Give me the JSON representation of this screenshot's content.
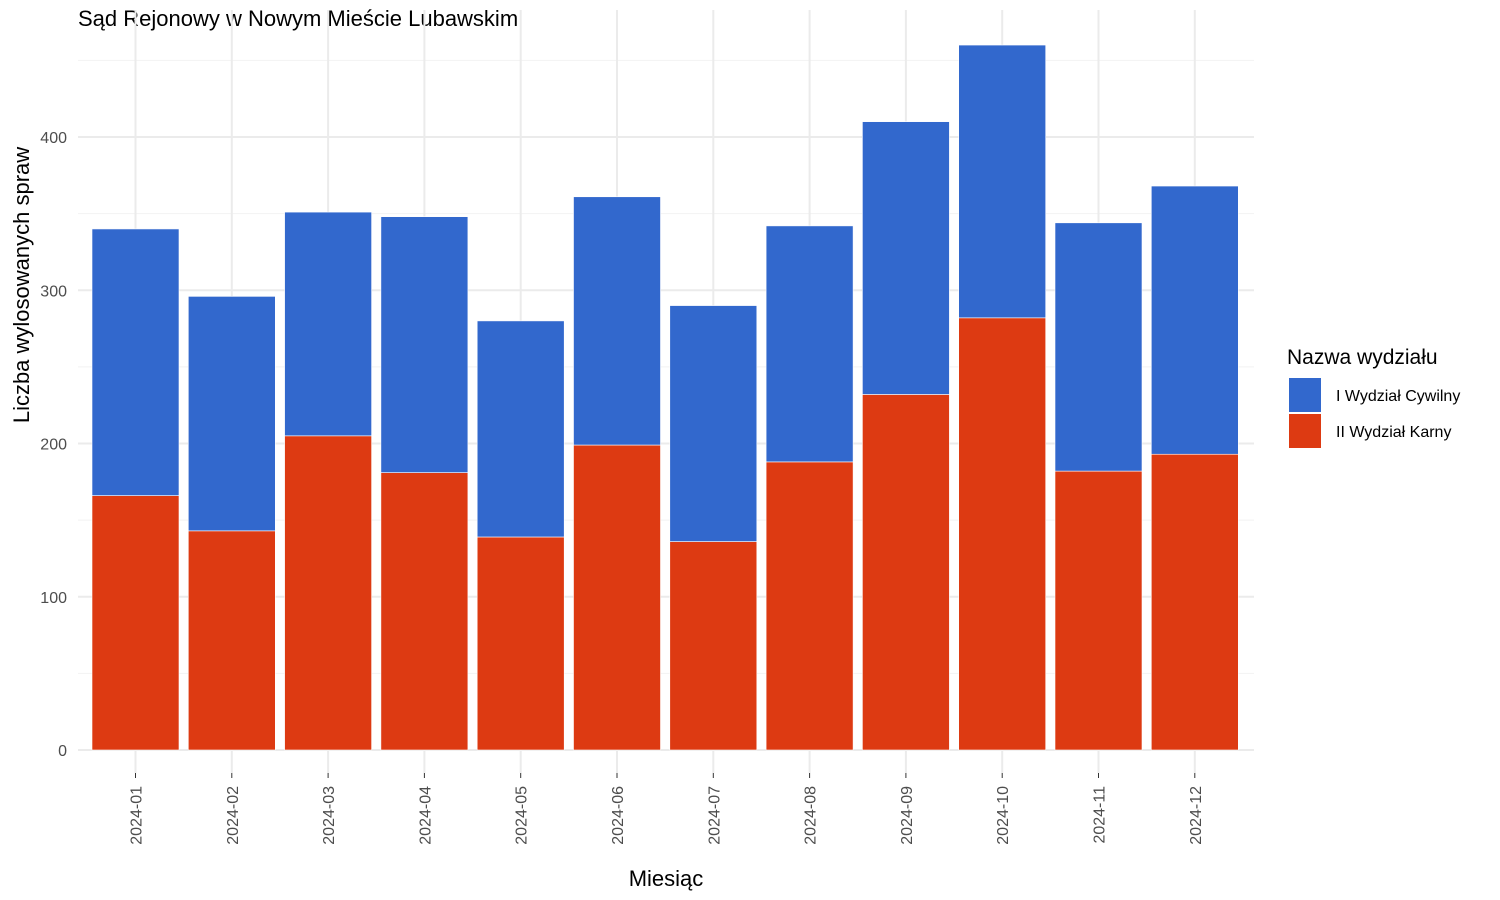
{
  "chart_data": {
    "type": "bar",
    "stacked": true,
    "title": "Sąd Rejonowy w Nowym Mieście Lubawskim",
    "xlabel": "Miesiąc",
    "ylabel": "Liczba wylosowanych spraw",
    "ylim": [
      0,
      460
    ],
    "yticks": [
      0,
      100,
      200,
      300,
      400
    ],
    "categories": [
      "2024-01",
      "2024-02",
      "2024-03",
      "2024-04",
      "2024-05",
      "2024-06",
      "2024-07",
      "2024-08",
      "2024-09",
      "2024-10",
      "2024-11",
      "2024-12"
    ],
    "series": [
      {
        "name": "II Wydział Karny",
        "color": "#dd3a12",
        "values": [
          166,
          143,
          205,
          181,
          139,
          199,
          136,
          188,
          232,
          282,
          182,
          193
        ]
      },
      {
        "name": "I Wydział Cywilny",
        "color": "#3268cd",
        "values": [
          174,
          153,
          146,
          167,
          141,
          162,
          154,
          154,
          178,
          178,
          162,
          175
        ]
      }
    ],
    "grid": true,
    "legend": {
      "title": "Nazwa wydziału",
      "placement": "right",
      "order": [
        "I Wydział Cywilny",
        "II Wydział Karny"
      ]
    }
  }
}
